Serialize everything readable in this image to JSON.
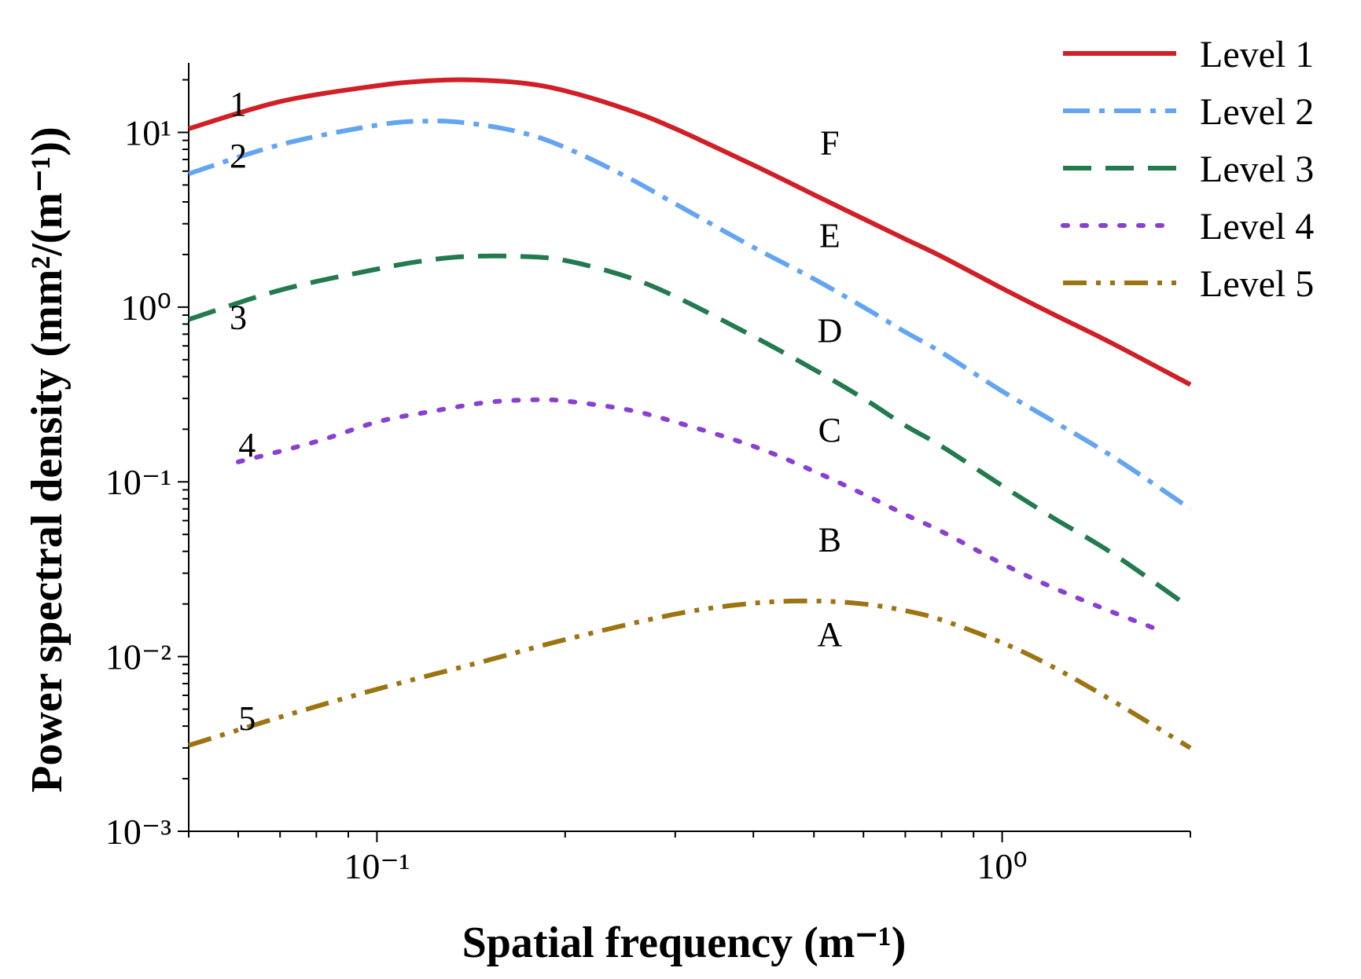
{
  "chart_data": {
    "type": "line",
    "xlabel": "Spatial frequency (m⁻¹)",
    "ylabel": "Power spectral density (mm²/(m⁻¹))",
    "xscale": "log",
    "yscale": "log",
    "xlim": [
      0.05,
      2
    ],
    "ylim": [
      0.001,
      25
    ],
    "x_ticks": [
      0.1,
      1
    ],
    "x_tick_labels": [
      "10⁻¹",
      "10⁰"
    ],
    "y_ticks": [
      10,
      1,
      0.1,
      0.01,
      0.001
    ],
    "y_tick_labels": [
      "10¹",
      "10⁰",
      "10⁻¹",
      "10⁻²",
      "10⁻³"
    ],
    "grid": false,
    "legend_position": "top-right",
    "series": [
      {
        "name": "Level 1",
        "color": "#d01f26",
        "style": "solid",
        "x": [
          0.05,
          0.07,
          0.1,
          0.12,
          0.14,
          0.17,
          0.2,
          0.25,
          0.3,
          0.4,
          0.5,
          0.6,
          0.7,
          0.8,
          1.0,
          1.2,
          1.5,
          2.0
        ],
        "y": [
          10.5,
          15.0,
          18.5,
          19.7,
          20.0,
          19.2,
          17.3,
          13.6,
          10.5,
          6.5,
          4.4,
          3.2,
          2.45,
          1.95,
          1.28,
          0.92,
          0.62,
          0.36
        ]
      },
      {
        "name": "Level 2",
        "color": "#63a5f0",
        "style": "dash-dot",
        "x": [
          0.05,
          0.07,
          0.1,
          0.12,
          0.14,
          0.17,
          0.2,
          0.25,
          0.3,
          0.4,
          0.5,
          0.6,
          0.7,
          0.8,
          1.0,
          1.2,
          1.5,
          2.0
        ],
        "y": [
          5.8,
          8.5,
          11.0,
          11.6,
          11.3,
          10.0,
          8.2,
          5.6,
          3.9,
          2.2,
          1.45,
          1.0,
          0.72,
          0.55,
          0.33,
          0.225,
          0.14,
          0.07
        ]
      },
      {
        "name": "Level 3",
        "color": "#227a4e",
        "style": "dashed",
        "x": [
          0.05,
          0.07,
          0.1,
          0.12,
          0.14,
          0.17,
          0.2,
          0.25,
          0.3,
          0.4,
          0.5,
          0.6,
          0.7,
          0.8,
          1.0,
          1.2,
          1.5,
          2.0
        ],
        "y": [
          0.85,
          1.25,
          1.65,
          1.85,
          1.95,
          1.95,
          1.85,
          1.5,
          1.15,
          0.68,
          0.44,
          0.3,
          0.21,
          0.16,
          0.095,
          0.063,
          0.039,
          0.019
        ]
      },
      {
        "name": "Level 4",
        "color": "#8a3fd1",
        "style": "dotted",
        "x": [
          0.06,
          0.08,
          0.1,
          0.12,
          0.15,
          0.18,
          0.2,
          0.25,
          0.3,
          0.4,
          0.5,
          0.6,
          0.7,
          0.8,
          1.0,
          1.2,
          1.5,
          1.8
        ],
        "y": [
          0.13,
          0.17,
          0.22,
          0.25,
          0.285,
          0.295,
          0.29,
          0.26,
          0.22,
          0.16,
          0.115,
          0.085,
          0.065,
          0.052,
          0.034,
          0.025,
          0.018,
          0.014
        ]
      },
      {
        "name": "Level 5",
        "color": "#9c7412",
        "style": "dash-dot-dot",
        "x": [
          0.05,
          0.07,
          0.1,
          0.15,
          0.2,
          0.3,
          0.4,
          0.5,
          0.6,
          0.7,
          0.8,
          1.0,
          1.2,
          1.5,
          2.0
        ],
        "y": [
          0.0031,
          0.0045,
          0.0065,
          0.0095,
          0.0125,
          0.0175,
          0.0202,
          0.0208,
          0.02,
          0.0183,
          0.0162,
          0.012,
          0.0088,
          0.0056,
          0.003
        ]
      }
    ],
    "annotations": [
      {
        "text": "1",
        "x": 0.06,
        "y": 12.5
      },
      {
        "text": "2",
        "x": 0.06,
        "y": 6.3
      },
      {
        "text": "3",
        "x": 0.06,
        "y": 0.75
      },
      {
        "text": "4",
        "x": 0.062,
        "y": 0.14
      },
      {
        "text": "5",
        "x": 0.062,
        "y": 0.0038
      },
      {
        "text": "F",
        "x": 0.53,
        "y": 7.5
      },
      {
        "text": "E",
        "x": 0.53,
        "y": 2.2
      },
      {
        "text": "D",
        "x": 0.53,
        "y": 0.63
      },
      {
        "text": "C",
        "x": 0.53,
        "y": 0.17
      },
      {
        "text": "B",
        "x": 0.53,
        "y": 0.04
      },
      {
        "text": "A",
        "x": 0.53,
        "y": 0.0115
      }
    ]
  }
}
